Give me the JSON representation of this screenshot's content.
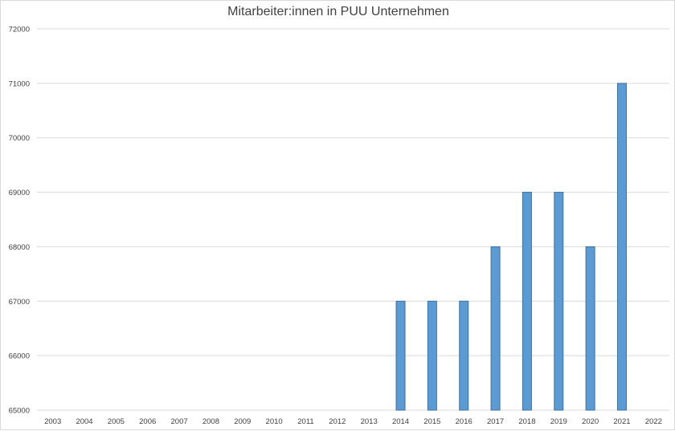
{
  "chart_data": {
    "type": "bar",
    "title": "Mitarbeiter:innen in PUU Unternehmen",
    "xlabel": "",
    "ylabel": "",
    "categories": [
      "2003",
      "2004",
      "2005",
      "2006",
      "2007",
      "2008",
      "2009",
      "2010",
      "2011",
      "2012",
      "2013",
      "2014",
      "2015",
      "2016",
      "2017",
      "2018",
      "2019",
      "2020",
      "2021",
      "2022"
    ],
    "series": [
      {
        "values": [
          null,
          null,
          null,
          null,
          null,
          null,
          null,
          null,
          null,
          null,
          null,
          67000,
          67000,
          67000,
          68000,
          69000,
          69000,
          68000,
          71000,
          null
        ]
      }
    ],
    "ylim": [
      65000,
      72000
    ],
    "yticks": [
      "65000",
      "66000",
      "67000",
      "68000",
      "69000",
      "70000",
      "71000",
      "72000"
    ],
    "grid": true,
    "legend": "none",
    "bar_color": "#5b9bd5",
    "bar_border_color": "#41719c"
  }
}
